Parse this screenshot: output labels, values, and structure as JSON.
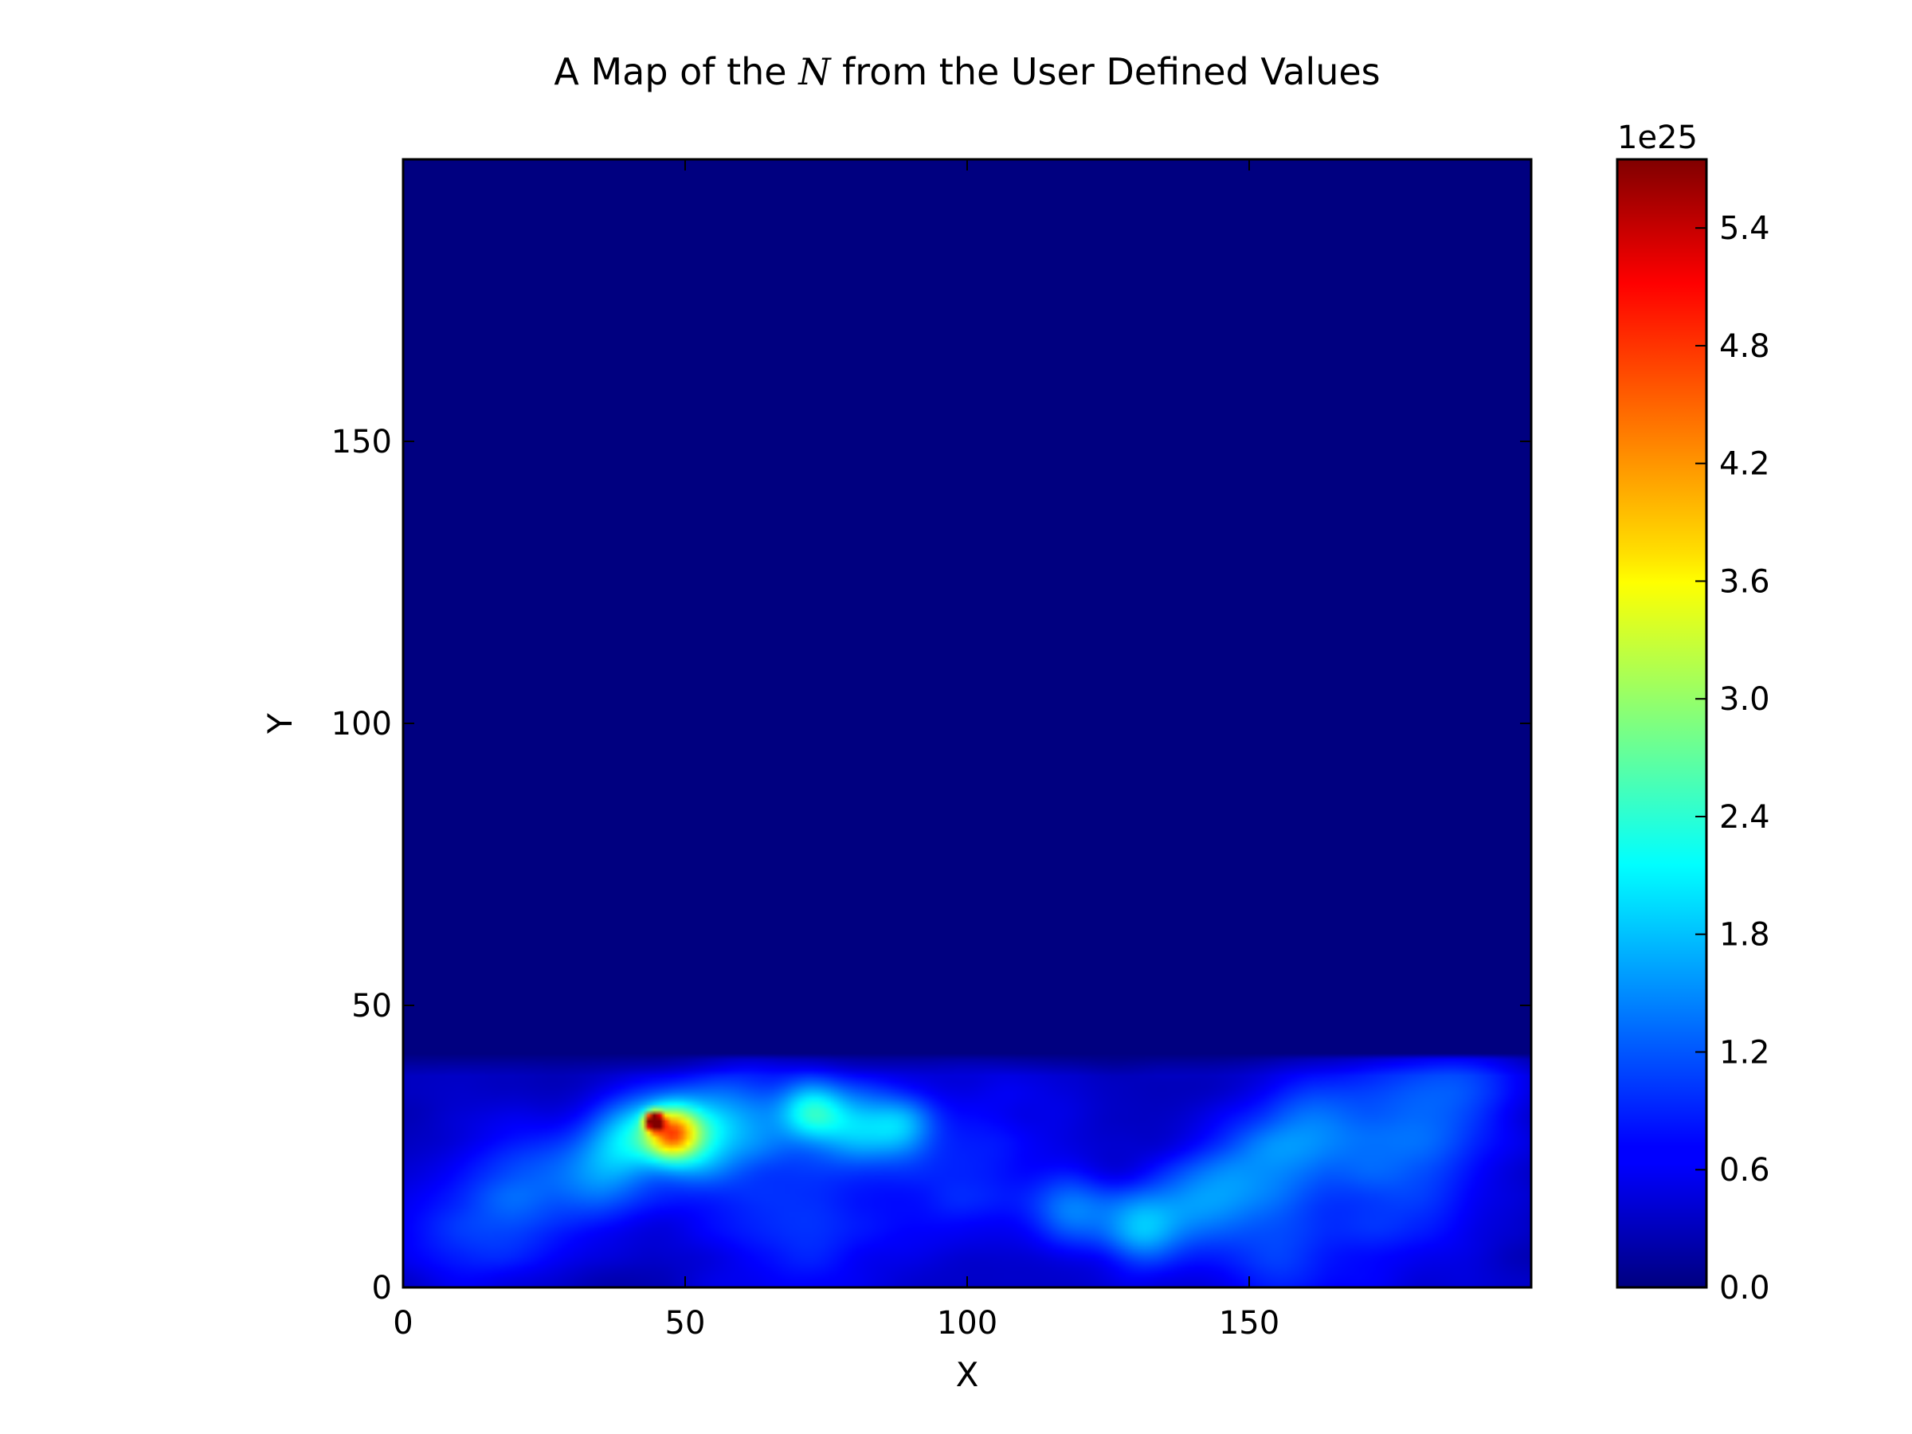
{
  "chart_data": {
    "type": "heatmap",
    "title_prefix": "A Map of the ",
    "title_math": "N",
    "title_suffix": " from the User Defined Values",
    "xlabel": "X",
    "ylabel": "Y",
    "xlim": [
      0,
      200
    ],
    "ylim": [
      0,
      200
    ],
    "xticks": [
      0,
      50,
      100,
      150
    ],
    "yticks": [
      0,
      50,
      100,
      150
    ],
    "colormap": "jet",
    "colorbar": {
      "min": 0.0,
      "max": 5.75,
      "multiplier": "1e25",
      "ticks": [
        "0.0",
        "0.6",
        "1.2",
        "1.8",
        "2.4",
        "3.0",
        "3.6",
        "4.2",
        "4.8",
        "5.4"
      ]
    },
    "background_value": 0.0,
    "nonzero_region_y": [
      0,
      40
    ],
    "features": [
      {
        "x": 44,
        "y": 29,
        "value": 5.75,
        "radius": 1
      },
      {
        "x": 47,
        "y": 27,
        "value": 2.2,
        "radius": 3
      },
      {
        "x": 50,
        "y": 26,
        "value": 1.6,
        "radius": 5
      },
      {
        "x": 40,
        "y": 27,
        "value": 1.2,
        "radius": 5
      },
      {
        "x": 60,
        "y": 29,
        "value": 1.0,
        "radius": 7
      },
      {
        "x": 72,
        "y": 31,
        "value": 1.4,
        "radius": 4
      },
      {
        "x": 80,
        "y": 28,
        "value": 1.2,
        "radius": 5
      },
      {
        "x": 88,
        "y": 28,
        "value": 0.9,
        "radius": 4
      },
      {
        "x": 35,
        "y": 20,
        "value": 0.9,
        "radius": 6
      },
      {
        "x": 22,
        "y": 18,
        "value": 0.7,
        "radius": 8
      },
      {
        "x": 100,
        "y": 22,
        "value": 0.6,
        "radius": 10
      },
      {
        "x": 118,
        "y": 13,
        "value": 1.0,
        "radius": 5
      },
      {
        "x": 130,
        "y": 10,
        "value": 1.3,
        "radius": 5
      },
      {
        "x": 140,
        "y": 14,
        "value": 0.9,
        "radius": 6
      },
      {
        "x": 150,
        "y": 20,
        "value": 0.8,
        "radius": 7
      },
      {
        "x": 160,
        "y": 28,
        "value": 0.8,
        "radius": 7
      },
      {
        "x": 178,
        "y": 30,
        "value": 0.6,
        "radius": 9
      },
      {
        "x": 175,
        "y": 15,
        "value": 0.55,
        "radius": 12
      },
      {
        "x": 70,
        "y": 10,
        "value": 0.55,
        "radius": 14
      },
      {
        "x": 155,
        "y": 4,
        "value": 0.6,
        "radius": 8
      },
      {
        "x": 10,
        "y": 8,
        "value": 0.5,
        "radius": 10
      },
      {
        "x": 190,
        "y": 36,
        "value": 0.45,
        "radius": 8
      }
    ]
  }
}
